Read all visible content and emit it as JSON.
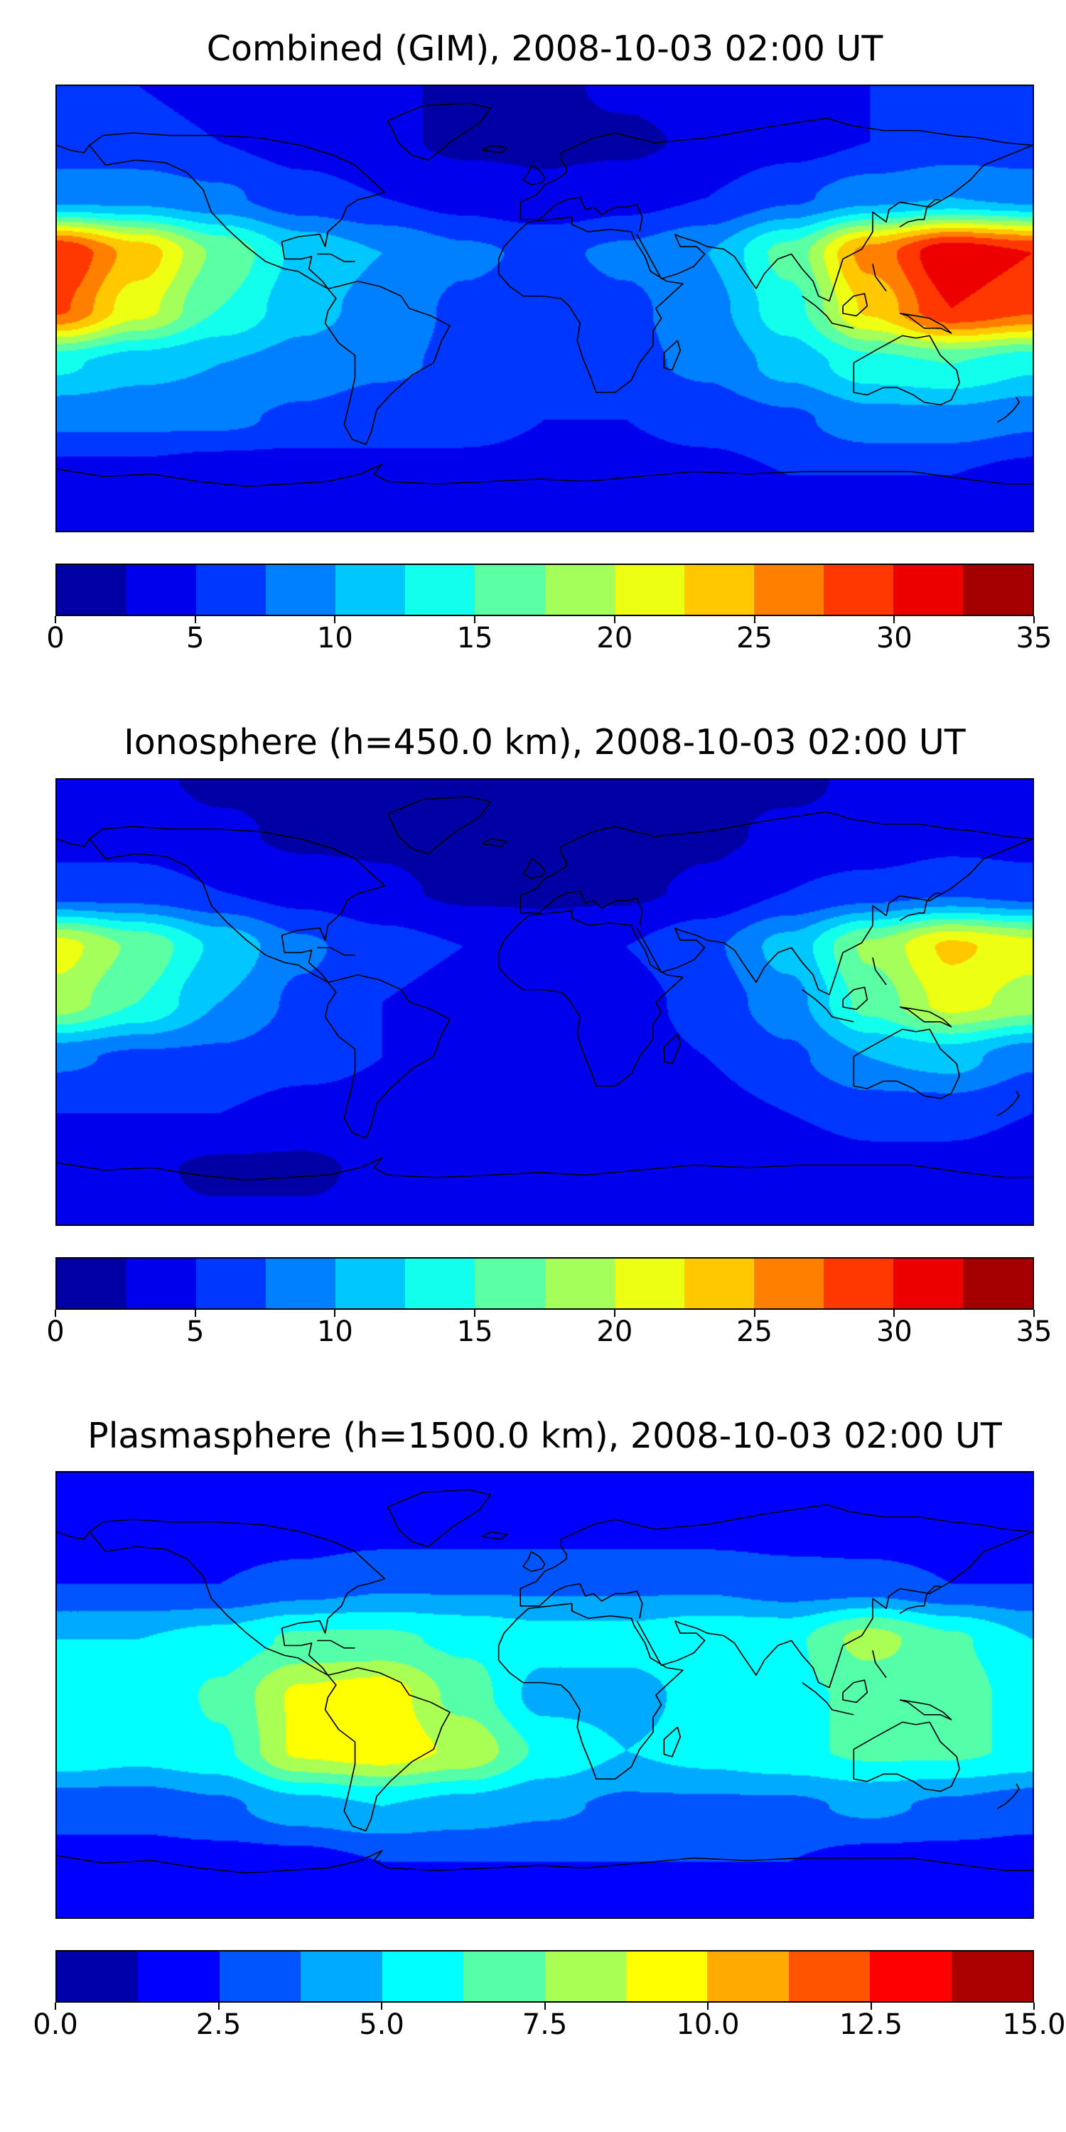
{
  "figure": {
    "panels": [
      {
        "id": "combined",
        "title": "Combined (GIM), 2008-10-03 02:00 UT",
        "colorbar_tick_labels": [
          "0",
          "5",
          "10",
          "15",
          "20",
          "25",
          "30",
          "35"
        ]
      },
      {
        "id": "ionosphere",
        "title": "Ionosphere  (h=450.0 km), 2008-10-03 02:00 UT",
        "colorbar_tick_labels": [
          "0",
          "5",
          "10",
          "15",
          "20",
          "25",
          "30",
          "35"
        ]
      },
      {
        "id": "plasmasphere",
        "title": "Plasmasphere (h=1500.0 km), 2008-10-03 02:00 UT",
        "colorbar_tick_labels": [
          "0.0",
          "2.5",
          "5.0",
          "7.5",
          "10.0",
          "12.5",
          "15.0"
        ]
      }
    ]
  },
  "chart_data": [
    {
      "type": "heatmap",
      "title": "Combined (GIM), 2008-10-03 02:00 UT",
      "colormap": "jet",
      "projection": "equirectangular world map with coastlines",
      "vmin": 0,
      "vmax": 35,
      "n_levels": 14,
      "colorbar_ticks": [
        0,
        5,
        10,
        15,
        20,
        25,
        30,
        35
      ],
      "lon": [
        -180,
        -150,
        -120,
        -90,
        -60,
        -30,
        0,
        30,
        60,
        90,
        120,
        150,
        180
      ],
      "lat": [
        90,
        67.5,
        45,
        22.5,
        0,
        -22.5,
        -45,
        -67.5,
        -90
      ],
      "values": [
        [
          5,
          5,
          4,
          3,
          3,
          2,
          2,
          3,
          4,
          4,
          5,
          5,
          5
        ],
        [
          6,
          6,
          5,
          4,
          3,
          2,
          2,
          2,
          3,
          4,
          5,
          6,
          6
        ],
        [
          9,
          9,
          8,
          6,
          5,
          4,
          3,
          4,
          5,
          7,
          9,
          10,
          9
        ],
        [
          30,
          24,
          17,
          12,
          10,
          8,
          7,
          8,
          10,
          16,
          26,
          32,
          30
        ],
        [
          28,
          21,
          15,
          11,
          9,
          7,
          6,
          7,
          9,
          14,
          23,
          30,
          28
        ],
        [
          13,
          11,
          10,
          9,
          8,
          7,
          6,
          7,
          8,
          11,
          14,
          15,
          13
        ],
        [
          8,
          8,
          8,
          7,
          6,
          6,
          5,
          5,
          6,
          7,
          9,
          9,
          8
        ],
        [
          4,
          4,
          3,
          3,
          4,
          4,
          4,
          4,
          4,
          5,
          5,
          5,
          4
        ],
        [
          4,
          4,
          4,
          4,
          4,
          4,
          4,
          4,
          4,
          4,
          4,
          4,
          4
        ]
      ]
    },
    {
      "type": "heatmap",
      "title": "Ionosphere  (h=450.0 km), 2008-10-03 02:00 UT",
      "colormap": "jet",
      "projection": "equirectangular world map with coastlines",
      "vmin": 0,
      "vmax": 35,
      "n_levels": 14,
      "colorbar_ticks": [
        0,
        5,
        10,
        15,
        20,
        25,
        30,
        35
      ],
      "lon": [
        -180,
        -150,
        -120,
        -90,
        -60,
        -30,
        0,
        30,
        60,
        90,
        120,
        150,
        180
      ],
      "lat": [
        90,
        67.5,
        45,
        22.5,
        0,
        -22.5,
        -45,
        -67.5,
        -90
      ],
      "values": [
        [
          3,
          3,
          2,
          2,
          2,
          1,
          1,
          2,
          2,
          2,
          3,
          3,
          3
        ],
        [
          4,
          4,
          3,
          2,
          2,
          1,
          1,
          1,
          2,
          3,
          3,
          4,
          4
        ],
        [
          6,
          6,
          5,
          4,
          3,
          2,
          2,
          2,
          3,
          5,
          6,
          7,
          6
        ],
        [
          21,
          17,
          12,
          8,
          6,
          5,
          4,
          5,
          7,
          11,
          18,
          23,
          21
        ],
        [
          19,
          15,
          10,
          7,
          5,
          4,
          3,
          4,
          6,
          9,
          16,
          21,
          19
        ],
        [
          8,
          7,
          7,
          6,
          5,
          4,
          4,
          4,
          5,
          7,
          10,
          11,
          8
        ],
        [
          5,
          5,
          5,
          4,
          4,
          3,
          3,
          3,
          4,
          5,
          6,
          6,
          5
        ],
        [
          3,
          3,
          2,
          2,
          3,
          3,
          3,
          3,
          3,
          3,
          4,
          4,
          3
        ],
        [
          3,
          3,
          3,
          3,
          3,
          3,
          3,
          3,
          3,
          3,
          3,
          3,
          3
        ]
      ]
    },
    {
      "type": "heatmap",
      "title": "Plasmasphere (h=1500.0 km), 2008-10-03 02:00 UT",
      "colormap": "jet",
      "projection": "equirectangular world map with coastlines",
      "vmin": 0,
      "vmax": 15,
      "n_levels": 12,
      "colorbar_ticks": [
        0,
        2.5,
        5,
        7.5,
        10,
        12.5,
        15
      ],
      "lon": [
        -180,
        -150,
        -120,
        -90,
        -60,
        -30,
        0,
        30,
        60,
        90,
        120,
        150,
        180
      ],
      "lat": [
        90,
        67.5,
        45,
        22.5,
        0,
        -22.5,
        -45,
        -67.5,
        -90
      ],
      "values": [
        [
          1.5,
          1.5,
          1.5,
          1.5,
          1.5,
          1.5,
          1.5,
          1.5,
          1.5,
          1.5,
          1.5,
          1.5,
          1.5
        ],
        [
          1.8,
          1.8,
          1.8,
          1.8,
          2,
          2,
          2,
          2,
          2,
          2,
          1.8,
          1.8,
          1.8
        ],
        [
          2.5,
          2.5,
          2.5,
          3,
          3.5,
          3.5,
          3.5,
          3.5,
          3.5,
          3,
          3,
          2.5,
          2.5
        ],
        [
          5,
          5,
          5.5,
          6.5,
          6.5,
          6,
          5.5,
          5.5,
          6,
          6,
          8,
          6.5,
          5
        ],
        [
          5.5,
          5,
          6.5,
          9,
          9.5,
          7,
          4.5,
          4.5,
          5.5,
          6,
          6.5,
          7,
          5.5
        ],
        [
          6,
          5.5,
          6,
          9,
          9.5,
          8.5,
          6,
          5,
          5.5,
          6,
          6.5,
          6.5,
          6
        ],
        [
          3,
          3,
          3.5,
          4.5,
          5,
          4.5,
          4,
          3.5,
          3.5,
          3.5,
          4,
          3.5,
          3
        ],
        [
          2,
          2,
          2,
          2,
          2.5,
          2.5,
          2.5,
          2.5,
          2.5,
          2.5,
          2,
          2,
          2
        ],
        [
          1.5,
          1.5,
          1.5,
          1.5,
          1.5,
          1.5,
          1.5,
          1.5,
          1.5,
          1.5,
          1.5,
          1.5,
          1.5
        ]
      ]
    }
  ]
}
